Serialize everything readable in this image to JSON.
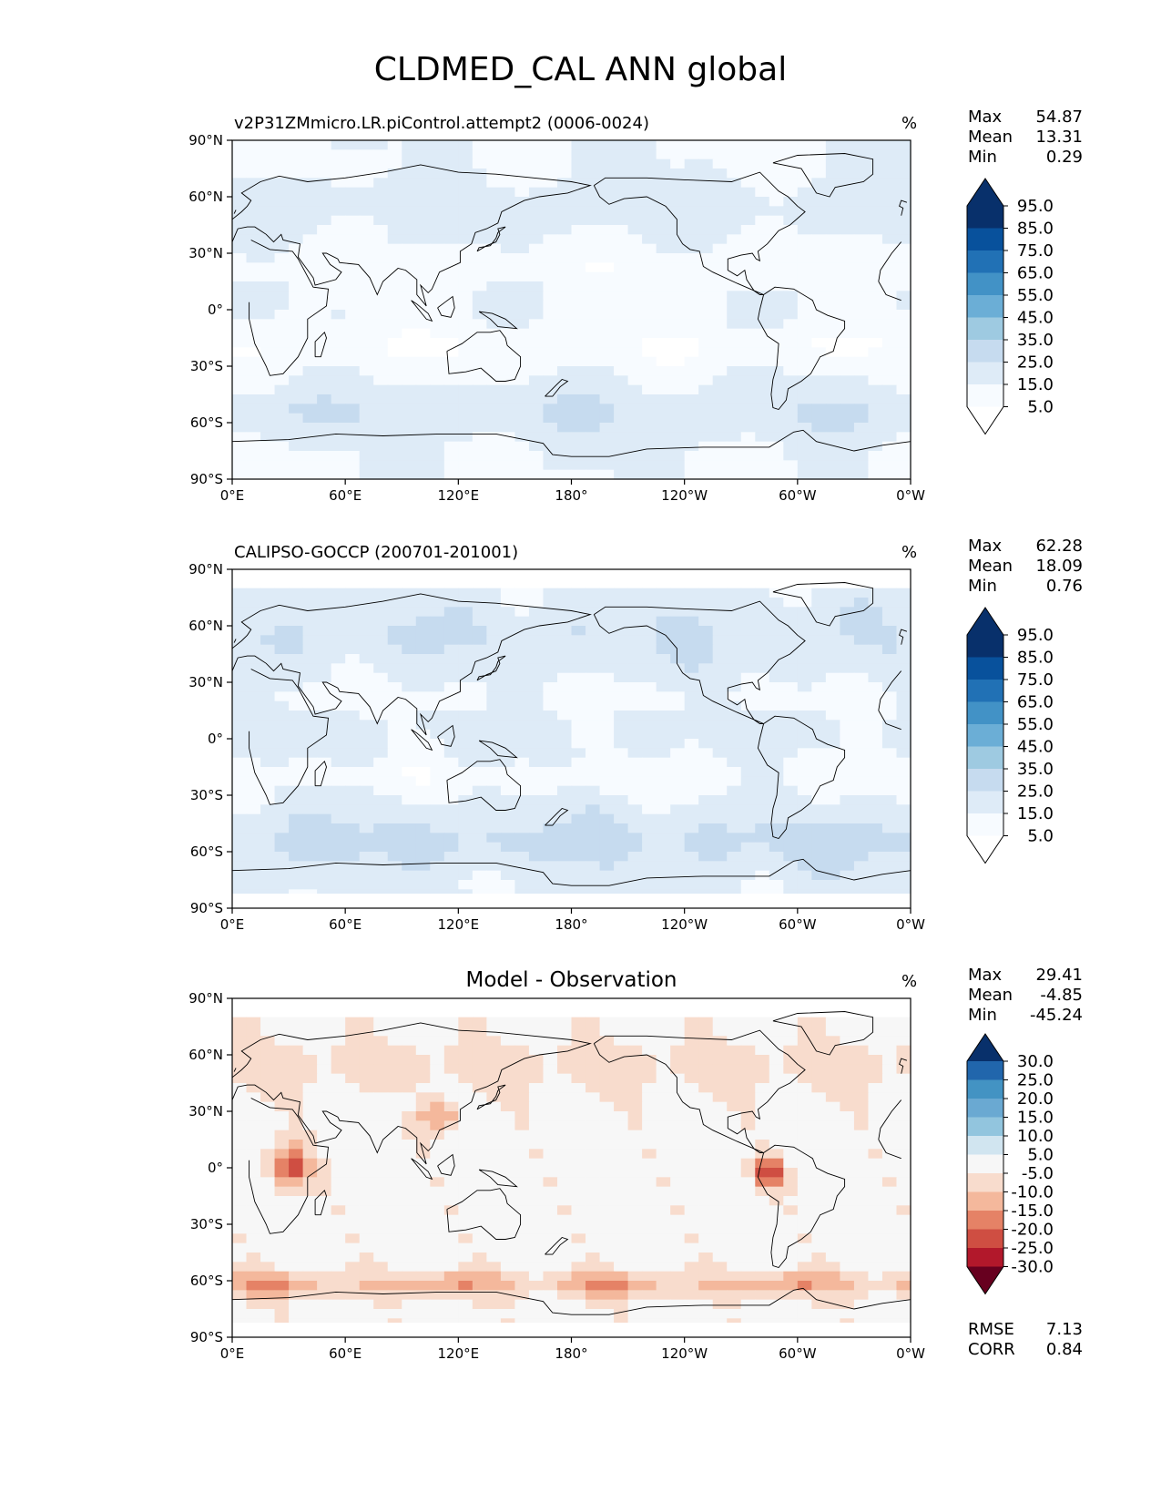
{
  "figure_title": "CLDMED_CAL ANN global",
  "chart_data": [
    {
      "type": "heatmap",
      "title": "v2P31ZMmicro.LR.piControl.attempt2 (0006-0024)",
      "units": "%",
      "x_ticks": [
        "0°E",
        "60°E",
        "120°E",
        "180°",
        "120°W",
        "60°W",
        "0°W"
      ],
      "y_ticks": [
        "90°N",
        "60°N",
        "30°N",
        "0°",
        "30°S",
        "60°S",
        "90°S"
      ],
      "xlim": [
        0,
        360
      ],
      "ylim": [
        -90,
        90
      ],
      "stats": [
        {
          "label": "Max",
          "value": "54.87"
        },
        {
          "label": "Mean",
          "value": "13.31"
        },
        {
          "label": "Min",
          "value": "0.29"
        }
      ],
      "colorbar": {
        "levels": [
          "95.0",
          "85.0",
          "75.0",
          "65.0",
          "55.0",
          "45.0",
          "35.0",
          "25.0",
          "15.0",
          "5.0"
        ],
        "colors": [
          "#08306b",
          "#08519c",
          "#2171b5",
          "#4292c6",
          "#6baed6",
          "#9ecae1",
          "#c6dbef",
          "#deebf7",
          "#f7fbff"
        ],
        "extend_top": "#08306b",
        "extend_bottom": "#ffffff"
      }
    },
    {
      "type": "heatmap",
      "title": "CALIPSO-GOCCP (200701-201001)",
      "units": "%",
      "x_ticks": [
        "0°E",
        "60°E",
        "120°E",
        "180°",
        "120°W",
        "60°W",
        "0°W"
      ],
      "y_ticks": [
        "90°N",
        "60°N",
        "30°N",
        "0°",
        "30°S",
        "60°S",
        "90°S"
      ],
      "xlim": [
        0,
        360
      ],
      "ylim": [
        -90,
        90
      ],
      "stats": [
        {
          "label": "Max",
          "value": "62.28"
        },
        {
          "label": "Mean",
          "value": "18.09"
        },
        {
          "label": "Min",
          "value": "0.76"
        }
      ],
      "colorbar": {
        "levels": [
          "95.0",
          "85.0",
          "75.0",
          "65.0",
          "55.0",
          "45.0",
          "35.0",
          "25.0",
          "15.0",
          "5.0"
        ],
        "colors": [
          "#08306b",
          "#08519c",
          "#2171b5",
          "#4292c6",
          "#6baed6",
          "#9ecae1",
          "#c6dbef",
          "#deebf7",
          "#f7fbff"
        ],
        "extend_top": "#08306b",
        "extend_bottom": "#ffffff"
      }
    },
    {
      "type": "heatmap",
      "title": "Model - Observation",
      "units": "%",
      "x_ticks": [
        "0°E",
        "60°E",
        "120°E",
        "180°",
        "120°W",
        "60°W",
        "0°W"
      ],
      "y_ticks": [
        "90°N",
        "60°N",
        "30°N",
        "0°",
        "30°S",
        "60°S",
        "90°S"
      ],
      "xlim": [
        0,
        360
      ],
      "ylim": [
        -90,
        90
      ],
      "stats": [
        {
          "label": "Max",
          "value": "29.41"
        },
        {
          "label": "Mean",
          "value": "-4.85"
        },
        {
          "label": "Min",
          "value": "-45.24"
        }
      ],
      "extra_stats": [
        {
          "label": "RMSE",
          "value": "7.13"
        },
        {
          "label": "CORR",
          "value": "0.84"
        }
      ],
      "colorbar": {
        "levels": [
          "30.0",
          "25.0",
          "20.0",
          "15.0",
          "10.0",
          "5.0",
          "-5.0",
          "-10.0",
          "-15.0",
          "-20.0",
          "-25.0",
          "-30.0"
        ],
        "colors": [
          "#2166ac",
          "#4393c3",
          "#6aa9d2",
          "#92c5de",
          "#d1e5f0",
          "#f7f7f7",
          "#f8dccd",
          "#f4b89c",
          "#e58266",
          "#cf4e42",
          "#b2182b"
        ],
        "extend_top": "#08306b",
        "extend_bottom": "#67001f"
      }
    }
  ]
}
